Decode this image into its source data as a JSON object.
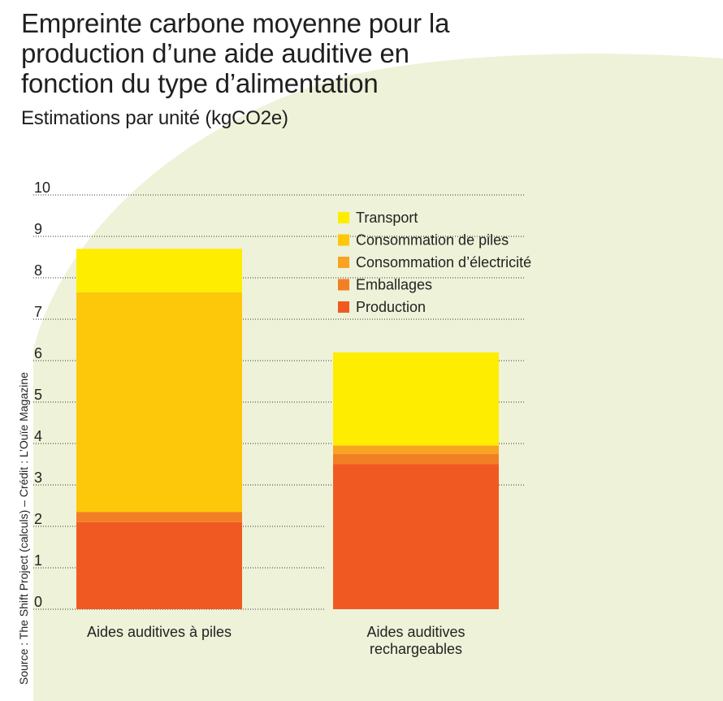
{
  "title": "Empreinte carbone moyenne pour la production d’une aide auditive en fonction du type d’alimentation",
  "subtitle": "Estimations par unité (kgCO2e)",
  "source": "Source : The Shift Project (calculs) – Crédit : L’Ouïe Magazine",
  "colors": {
    "background_shape": "#eef2d8",
    "text": "#1f1f1f",
    "grid": "#333333"
  },
  "chart_data": {
    "type": "bar",
    "stacked": true,
    "categories": [
      "Aides auditives à piles",
      "Aides auditives rechargeables"
    ],
    "series": [
      {
        "name": "Production",
        "color": "#f05a22",
        "values": [
          2.1,
          3.5
        ]
      },
      {
        "name": "Emballages",
        "color": "#f37f24",
        "values": [
          0.25,
          0.25
        ]
      },
      {
        "name": "Consommation d’électricité",
        "color": "#f8a321",
        "values": [
          0.0,
          0.2
        ]
      },
      {
        "name": "Consommation de piles",
        "color": "#fdc70a",
        "values": [
          5.3,
          0.0
        ]
      },
      {
        "name": "Transport",
        "color": "#ffed00",
        "values": [
          1.05,
          2.25
        ]
      }
    ],
    "legend_order": [
      "Transport",
      "Consommation de piles",
      "Consommation d’électricité",
      "Emballages",
      "Production"
    ],
    "ylim": [
      0,
      10
    ],
    "yticks": [
      0,
      1,
      2,
      3,
      4,
      5,
      6,
      7,
      8,
      9,
      10
    ],
    "grid": "dotted horizontal",
    "legend_position": "top-right"
  }
}
